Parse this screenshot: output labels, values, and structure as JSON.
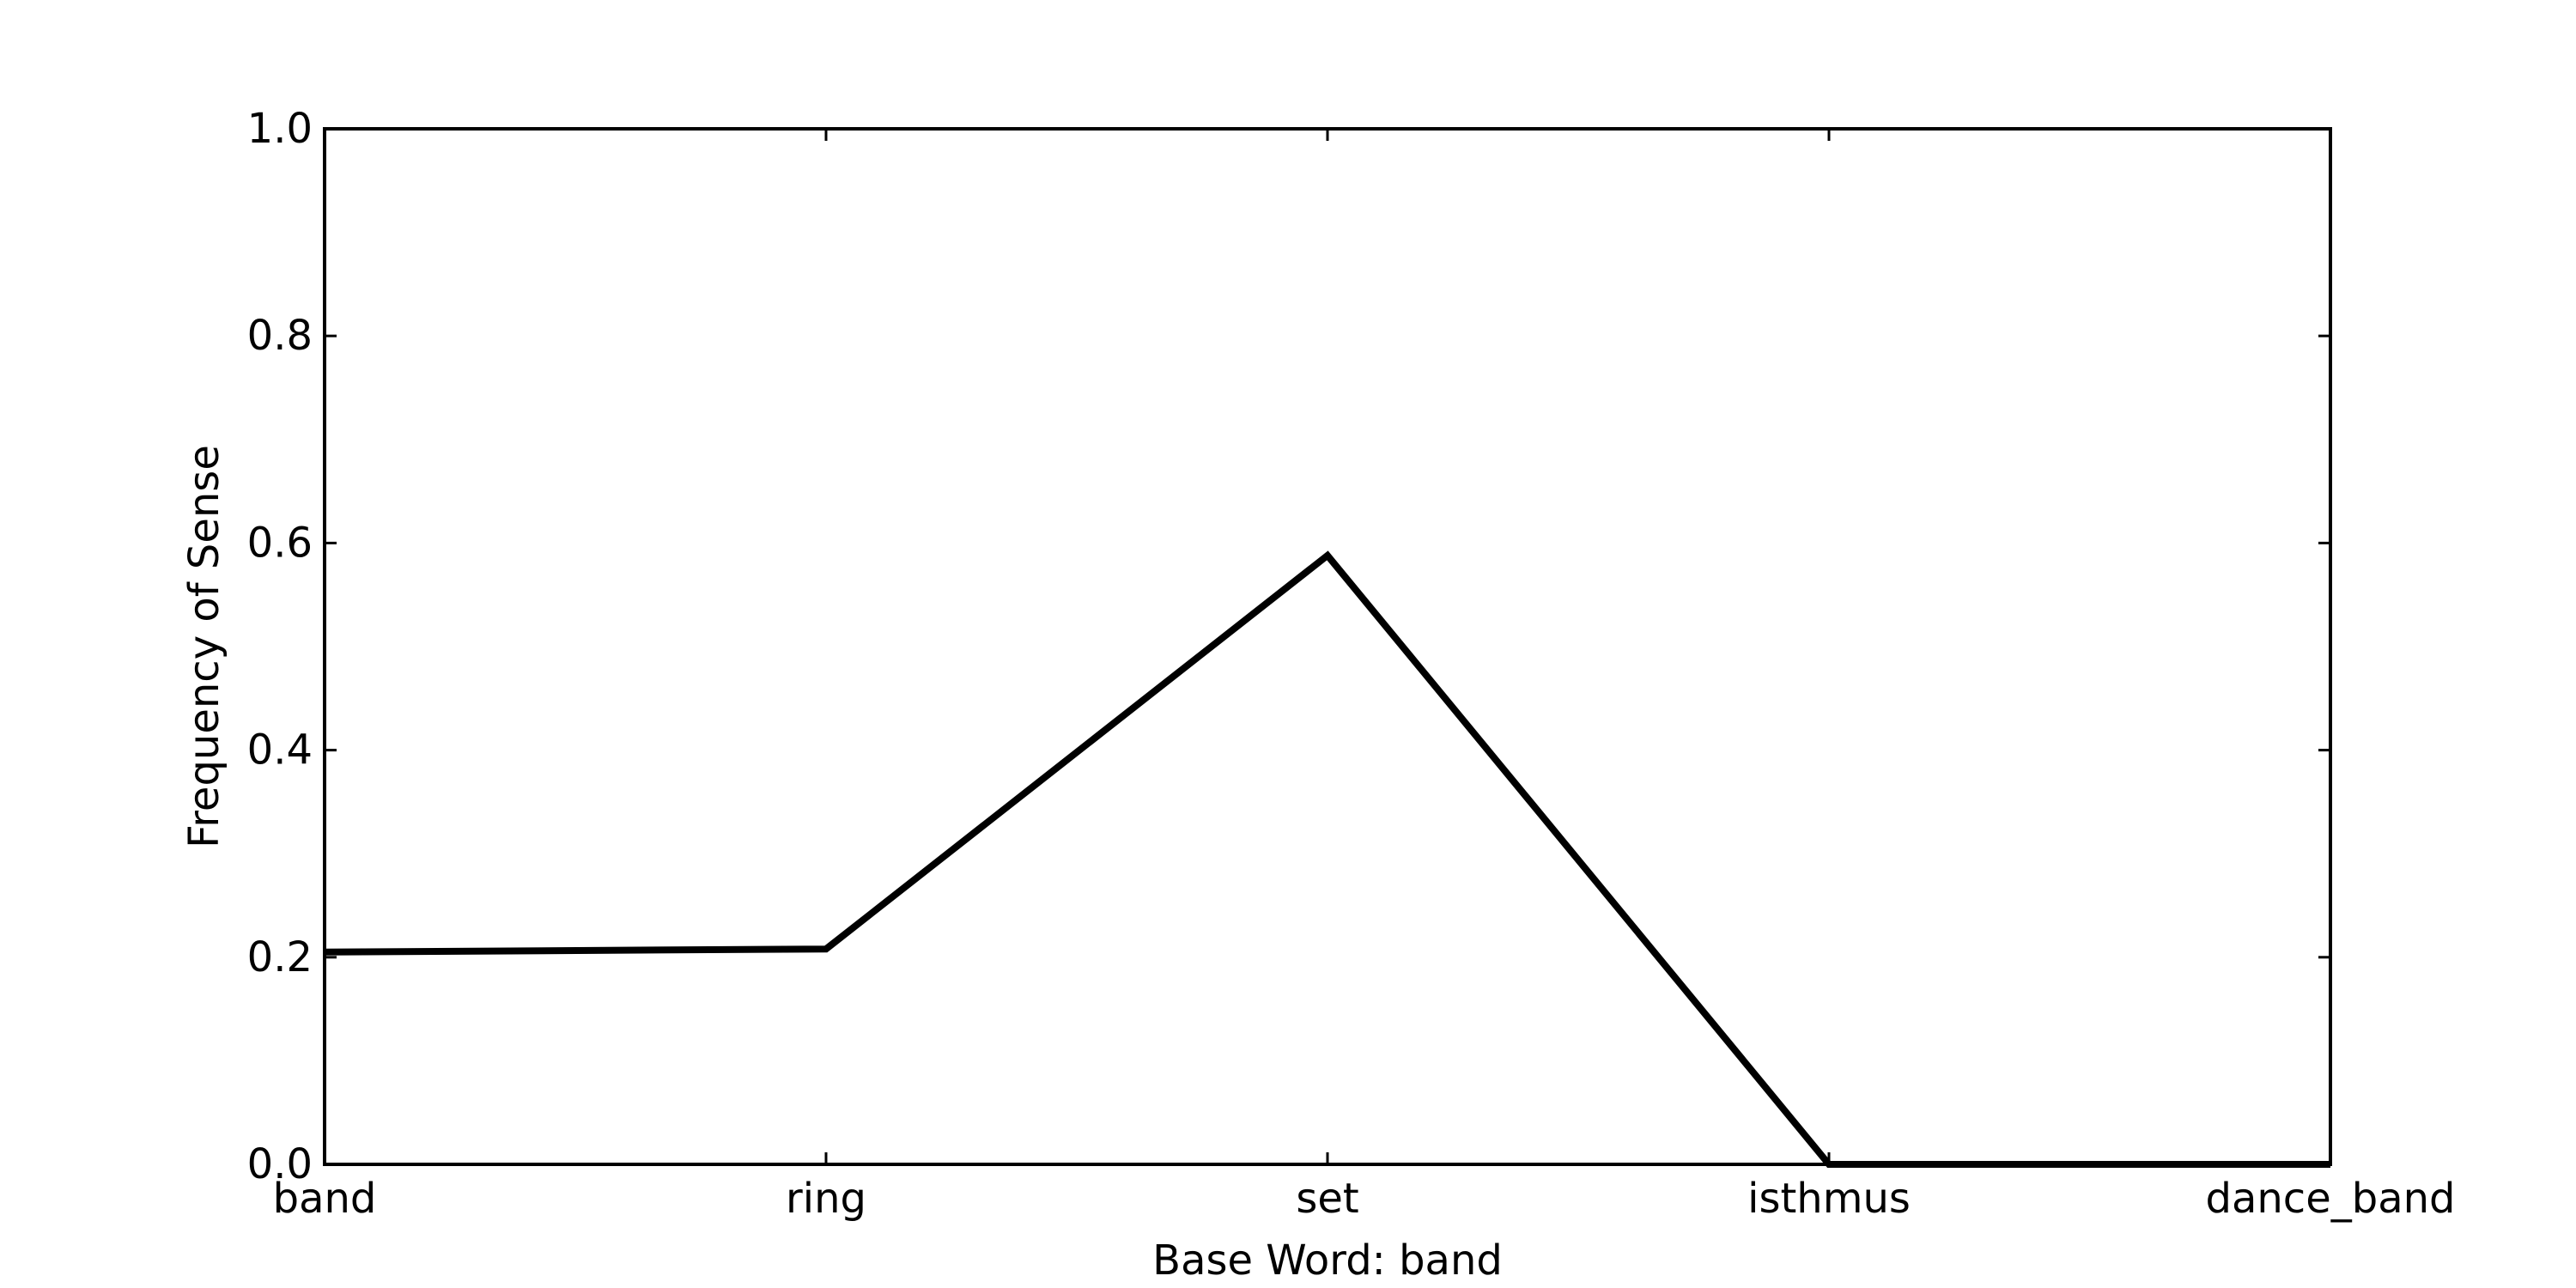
{
  "chart_data": {
    "type": "line",
    "title": "",
    "xlabel": "Base Word: band",
    "ylabel": "Frequency of Sense",
    "categories": [
      "band",
      "ring",
      "set",
      "isthmus",
      "dance_band"
    ],
    "series": [
      {
        "values": [
          0.205,
          0.208,
          0.588,
          0.0,
          0.0
        ],
        "color": "#000000"
      }
    ],
    "ylim": [
      0,
      1.0
    ],
    "y_ticks": [
      0.0,
      0.2,
      0.4,
      0.6,
      0.8,
      1.0
    ],
    "y_tick_labels": [
      "0.0",
      "0.2",
      "0.4",
      "0.6",
      "0.8",
      "1.0"
    ],
    "grid": false,
    "legend": "none"
  }
}
